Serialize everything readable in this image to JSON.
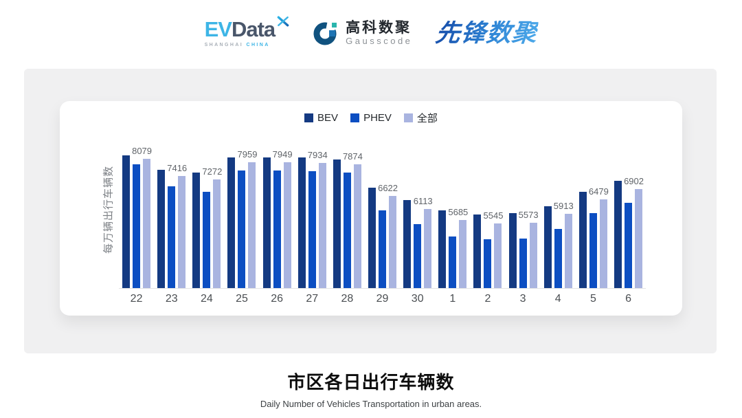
{
  "header": {
    "evdata": {
      "ev": "EV",
      "data": "Data",
      "sub_left": "SHANGHAI",
      "sub_right": "CHINA"
    },
    "gausscode": {
      "cn": "高科数聚",
      "en": "Gausscode"
    },
    "pioneer": {
      "text": "先锋数聚"
    }
  },
  "chart_data": {
    "type": "bar",
    "categories": [
      "22",
      "23",
      "24",
      "25",
      "26",
      "27",
      "28",
      "29",
      "30",
      "1",
      "2",
      "3",
      "4",
      "5",
      "6"
    ],
    "series": [
      {
        "key": "bev",
        "name": "BEV",
        "color": "#143a82",
        "values": [
          8220,
          7660,
          7550,
          8150,
          8130,
          8130,
          8060,
          6950,
          6470,
          6070,
          5900,
          5940,
          6230,
          6790,
          7230
        ]
      },
      {
        "key": "phev",
        "name": "PHEV",
        "color": "#0c4ec2",
        "values": [
          7860,
          7000,
          6780,
          7630,
          7620,
          7590,
          7550,
          6050,
          5510,
          5040,
          4920,
          4940,
          5330,
          5950,
          6350
        ]
      },
      {
        "key": "all",
        "name": "全部",
        "color": "#a9b4e0",
        "data_labels": true,
        "values": [
          8079,
          7416,
          7272,
          7959,
          7949,
          7934,
          7874,
          6622,
          6113,
          5685,
          5545,
          5573,
          5913,
          6479,
          6902
        ]
      }
    ],
    "ylabel": "每万辆出行车辆数",
    "xlabel": "",
    "ylim": [
      3000,
      9900
    ],
    "grid": false,
    "legend_position": "top-center"
  },
  "footer": {
    "title": "市区各日出行车辆数",
    "subtitle": "Daily Number of Vehicles Transportation in urban areas."
  },
  "colors": {
    "panel_bg": "#f0f0f1",
    "axis_line": "#e2e2e4"
  }
}
